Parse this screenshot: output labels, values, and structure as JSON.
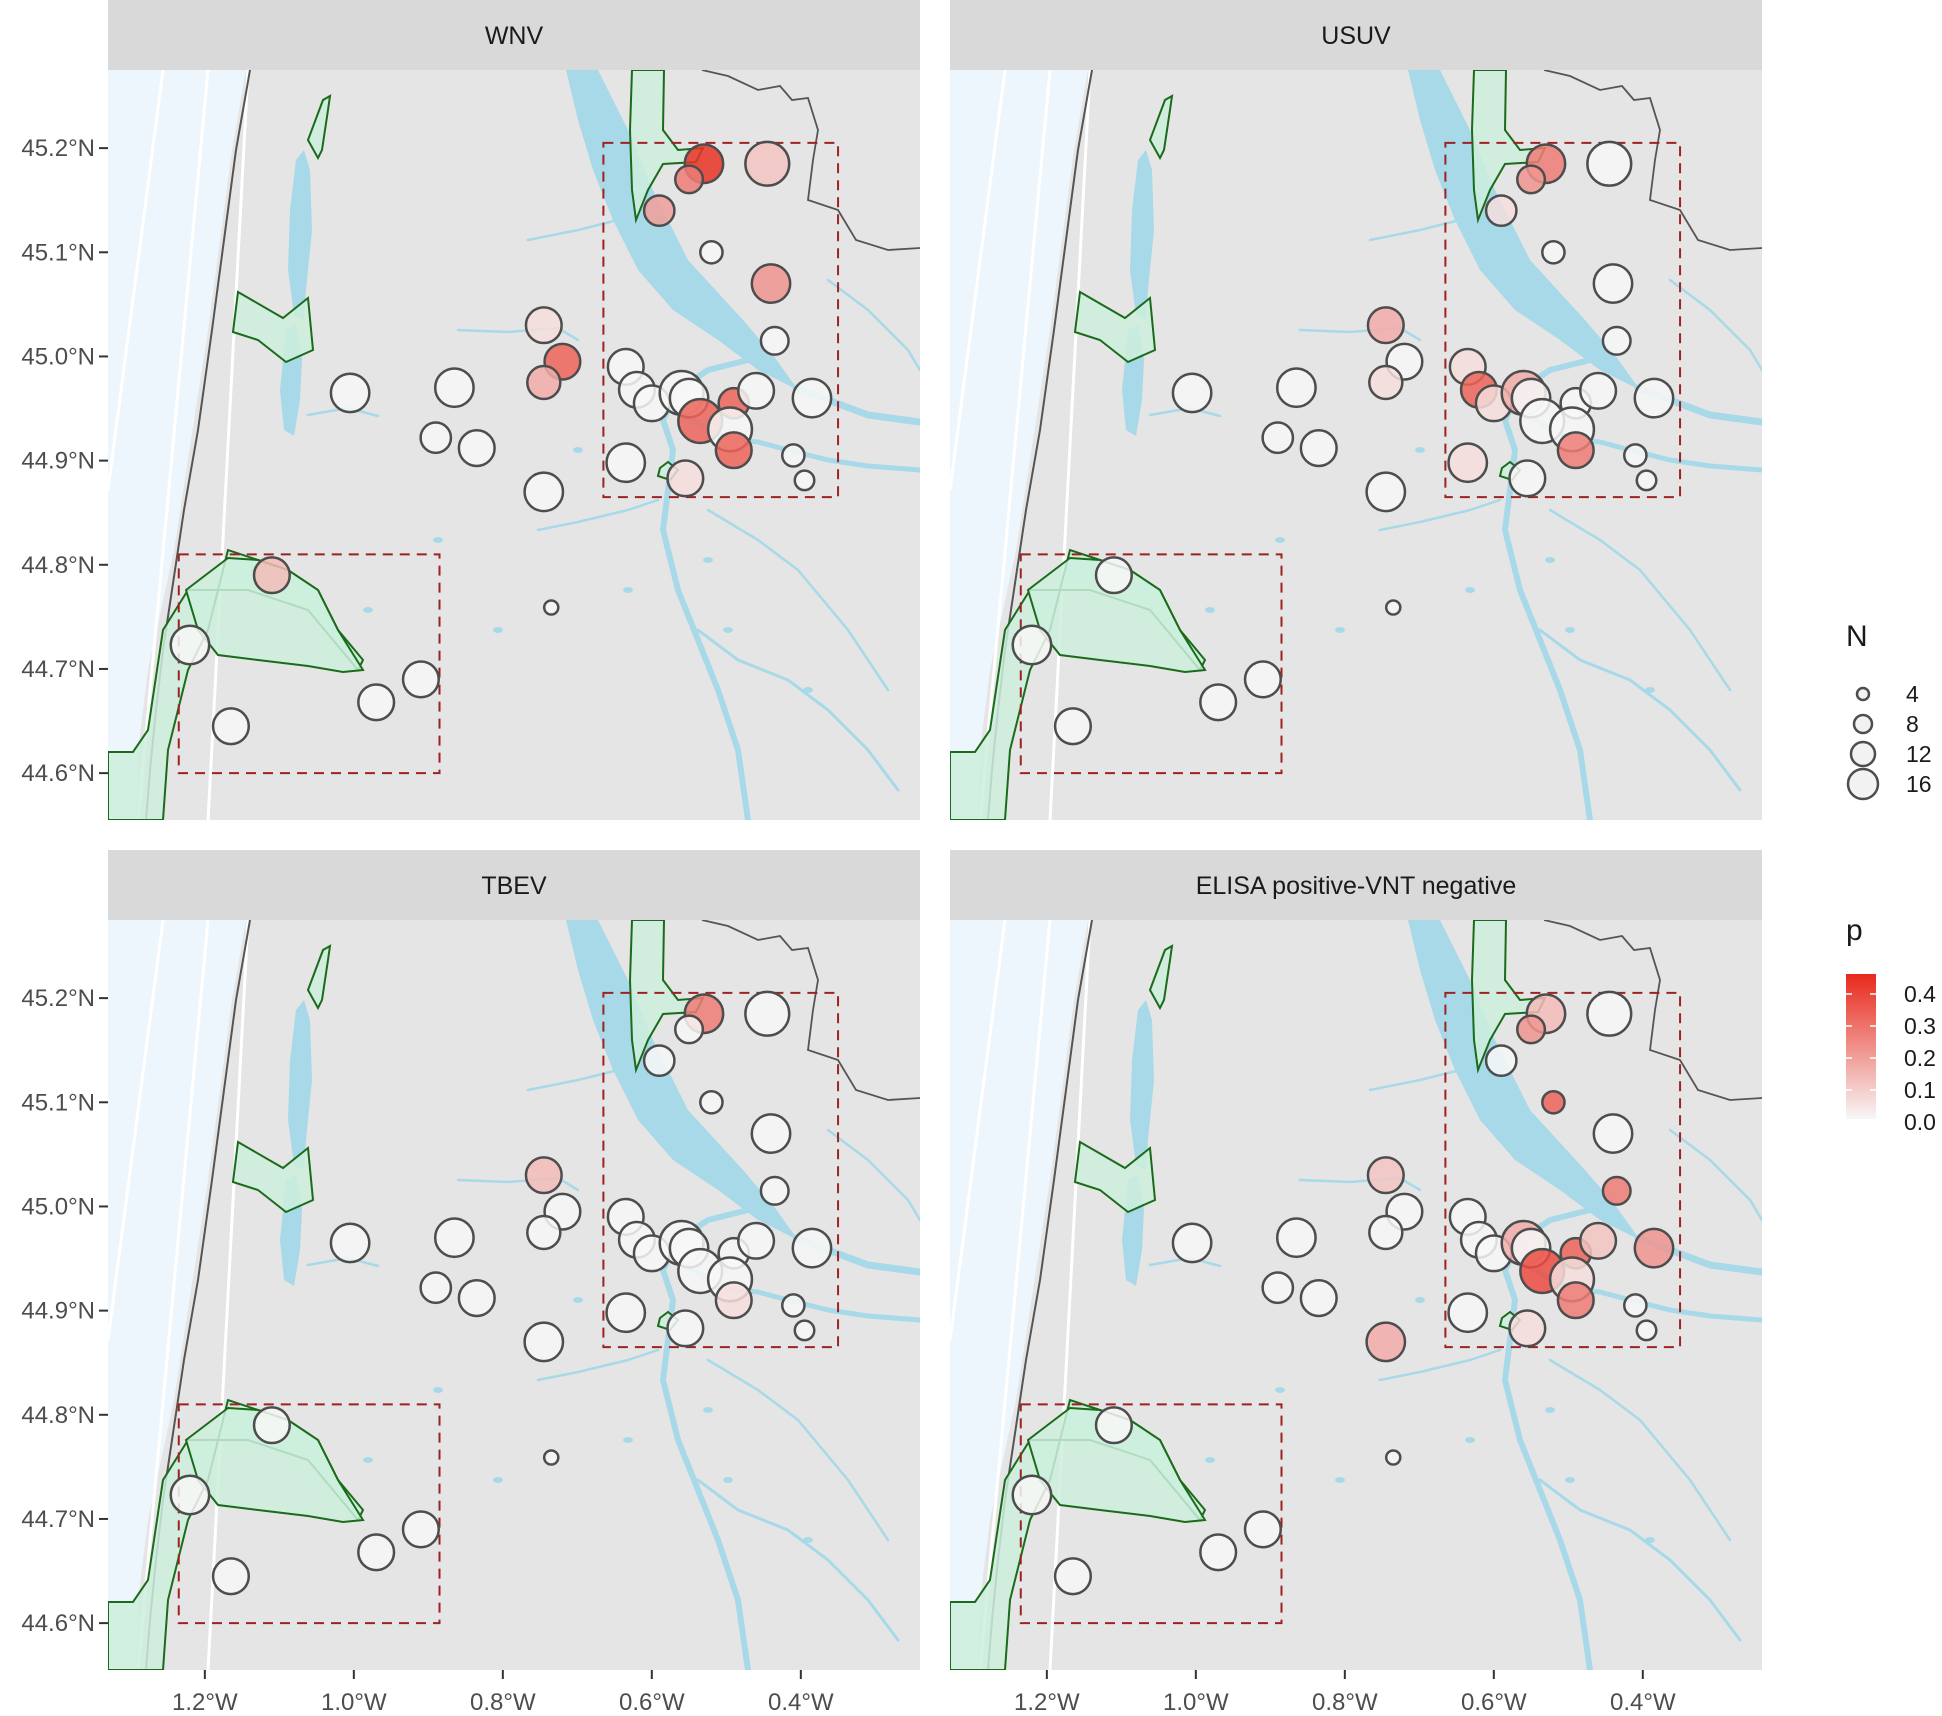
{
  "figure": {
    "panels": [
      {
        "title": "WNV"
      },
      {
        "title": "USUV"
      },
      {
        "title": "TBEV"
      },
      {
        "title": "ELISA positive-VNT negative"
      }
    ],
    "y_tick_labels": [
      "45.2°N",
      "45.1°N",
      "45.0°N",
      "44.9°N",
      "44.8°N",
      "44.7°N",
      "44.6°N"
    ],
    "x_tick_labels": [
      "1.2°W",
      "1.0°W",
      "0.8°W",
      "0.6°W",
      "0.4°W"
    ],
    "legend": {
      "size_title": "N",
      "size_labels": [
        "4",
        "8",
        "12",
        "16"
      ],
      "color_title": "p",
      "color_labels": [
        "0.4",
        "0.3",
        "0.2",
        "0.1",
        "0.0"
      ],
      "color_low": "#f7f7f7",
      "color_high": "#e8291c"
    },
    "colors": {
      "strip": "#d9d9d9",
      "land": "#e5e5e5",
      "sea": "#eef6fd",
      "water": "#a8d9e8",
      "protected_fill": "#cdeedd",
      "protected_stroke": "#1a6b1a",
      "box_stroke": "#9b2323",
      "point_stroke": "#4d4d4d"
    }
  },
  "chart_data": {
    "type": "scatter",
    "x_unit": "longitude (°E, negative = W)",
    "y_unit": "latitude (°N)",
    "xlim": [
      -1.33,
      -0.24
    ],
    "ylim": [
      44.555,
      45.275
    ],
    "study_areas": [
      {
        "lon_min": -1.235,
        "lon_max": -0.885,
        "lat_min": 44.6,
        "lat_max": 44.81
      },
      {
        "lon_min": -0.665,
        "lon_max": -0.35,
        "lat_min": 44.865,
        "lat_max": 45.205
      }
    ],
    "sites": [
      {
        "lon": -0.53,
        "lat": 45.185,
        "n": 12
      },
      {
        "lon": -0.55,
        "lat": 45.17,
        "n": 8
      },
      {
        "lon": -0.445,
        "lat": 45.185,
        "n": 14
      },
      {
        "lon": -0.59,
        "lat": 45.14,
        "n": 9
      },
      {
        "lon": -0.52,
        "lat": 45.1,
        "n": 6
      },
      {
        "lon": -0.44,
        "lat": 45.07,
        "n": 12
      },
      {
        "lon": -0.435,
        "lat": 45.015,
        "n": 8
      },
      {
        "lon": -0.745,
        "lat": 45.03,
        "n": 11
      },
      {
        "lon": -0.72,
        "lat": 44.995,
        "n": 11
      },
      {
        "lon": -0.745,
        "lat": 44.975,
        "n": 10
      },
      {
        "lon": -0.635,
        "lat": 44.99,
        "n": 11
      },
      {
        "lon": -0.62,
        "lat": 44.968,
        "n": 11
      },
      {
        "lon": -0.6,
        "lat": 44.955,
        "n": 11
      },
      {
        "lon": -0.56,
        "lat": 44.965,
        "n": 14
      },
      {
        "lon": -0.55,
        "lat": 44.96,
        "n": 12
      },
      {
        "lon": -0.535,
        "lat": 44.938,
        "n": 14
      },
      {
        "lon": -0.49,
        "lat": 44.955,
        "n": 9
      },
      {
        "lon": -0.46,
        "lat": 44.967,
        "n": 11
      },
      {
        "lon": -0.495,
        "lat": 44.93,
        "n": 14
      },
      {
        "lon": -0.49,
        "lat": 44.91,
        "n": 11
      },
      {
        "lon": -0.385,
        "lat": 44.96,
        "n": 12
      },
      {
        "lon": -0.41,
        "lat": 44.905,
        "n": 6
      },
      {
        "lon": -0.635,
        "lat": 44.898,
        "n": 12
      },
      {
        "lon": -0.555,
        "lat": 44.883,
        "n": 11
      },
      {
        "lon": -0.395,
        "lat": 44.881,
        "n": 5
      },
      {
        "lon": -1.005,
        "lat": 44.965,
        "n": 12
      },
      {
        "lon": -0.865,
        "lat": 44.97,
        "n": 12
      },
      {
        "lon": -0.89,
        "lat": 44.922,
        "n": 9
      },
      {
        "lon": -0.835,
        "lat": 44.912,
        "n": 11
      },
      {
        "lon": -0.745,
        "lat": 44.87,
        "n": 12
      },
      {
        "lon": -0.735,
        "lat": 44.759,
        "n": 3
      },
      {
        "lon": -1.11,
        "lat": 44.79,
        "n": 11
      },
      {
        "lon": -1.22,
        "lat": 44.723,
        "n": 12
      },
      {
        "lon": -0.91,
        "lat": 44.69,
        "n": 11
      },
      {
        "lon": -0.97,
        "lat": 44.668,
        "n": 11
      },
      {
        "lon": -1.165,
        "lat": 44.645,
        "n": 11
      }
    ],
    "p_values": {
      "WNV": [
        0.4,
        0.25,
        0.1,
        0.18,
        0,
        0.2,
        0,
        0.05,
        0.3,
        0.15,
        0,
        0,
        0,
        0,
        0,
        0.3,
        0.3,
        0,
        0,
        0.3,
        0,
        0,
        0,
        0.05,
        0,
        0,
        0,
        0,
        0,
        0,
        0,
        0.12,
        0,
        0,
        0,
        0
      ],
      "USUV": [
        0.25,
        0.2,
        0,
        0.05,
        0,
        0,
        0,
        0.15,
        0,
        0.05,
        0.05,
        0.3,
        0.05,
        0.15,
        0,
        0,
        0,
        0,
        0,
        0.25,
        0,
        0,
        0.05,
        0,
        0,
        0,
        0,
        0,
        0,
        0,
        0,
        0,
        0,
        0,
        0,
        0
      ],
      "TBEV": [
        0.25,
        0,
        0,
        0,
        0,
        0,
        0,
        0.12,
        0,
        0,
        0,
        0,
        0,
        0,
        0,
        0,
        0,
        0,
        0,
        0.05,
        0,
        0,
        0,
        0,
        0,
        0,
        0,
        0,
        0,
        0,
        0,
        0,
        0,
        0,
        0,
        0
      ],
      "ELISA positive-VNT negative": [
        0.12,
        0.2,
        0,
        0,
        0.3,
        0,
        0.25,
        0.1,
        0,
        0,
        0,
        0,
        0,
        0.15,
        0,
        0.35,
        0.3,
        0.1,
        0.05,
        0.25,
        0.2,
        0,
        0,
        0.05,
        0,
        0,
        0,
        0,
        0,
        0.15,
        0,
        0,
        0,
        0,
        0,
        0
      ]
    },
    "legend": {
      "size": "N",
      "color": "p"
    }
  }
}
